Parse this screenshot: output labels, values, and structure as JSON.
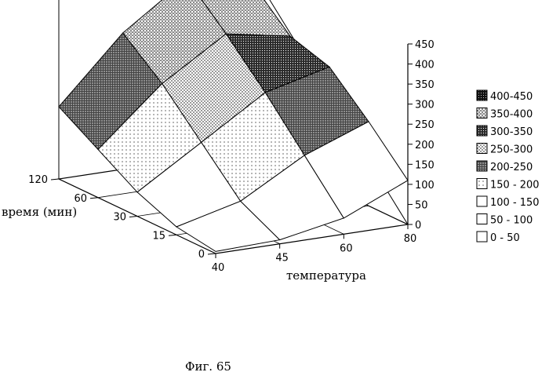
{
  "caption": "Фиг. 65",
  "chart_data": {
    "type": "surface",
    "xlabel": "температура",
    "ylabel": "время (мин)",
    "x_categories": [
      "40",
      "45",
      "60",
      "80"
    ],
    "y_categories": [
      "0",
      "15",
      "30",
      "60",
      "120"
    ],
    "z_ticks": [
      "0",
      "50",
      "100",
      "150",
      "200",
      "250",
      "300",
      "350",
      "400",
      "450"
    ],
    "zlim": [
      0,
      450
    ],
    "values": [
      [
        5,
        10,
        40,
        110
      ],
      [
        20,
        60,
        150,
        210
      ],
      [
        60,
        160,
        260,
        300
      ],
      [
        120,
        260,
        360,
        330
      ],
      [
        180,
        340,
        450,
        420
      ]
    ],
    "legend": [
      "400-450",
      "350-400",
      "300-350",
      "250-300",
      "200-250",
      "150 - 200",
      "100 - 150",
      "50 - 100",
      "0 - 50"
    ],
    "legend_placement": "right",
    "grid": false
  }
}
